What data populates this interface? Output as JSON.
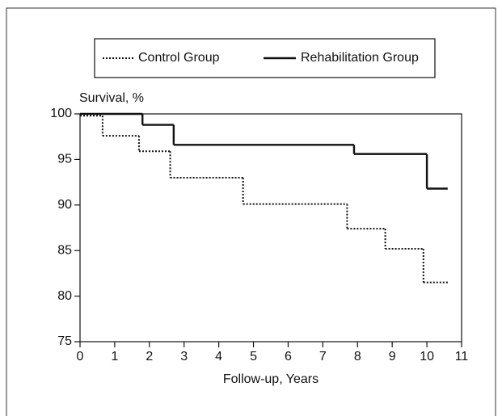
{
  "chart_data": {
    "type": "step",
    "y_label": "Survival, %",
    "x_label": "Follow-up, Years",
    "xlim": [
      0,
      11
    ],
    "xticks": [
      0,
      1,
      2,
      3,
      4,
      5,
      6,
      7,
      8,
      9,
      10,
      11
    ],
    "ylim": [
      75,
      100
    ],
    "yticks": [
      75,
      80,
      85,
      90,
      95,
      100
    ],
    "legend": "top",
    "series": [
      {
        "name": "Control Group",
        "color": "#111111",
        "dash": "dotted",
        "x": [
          0,
          0.65,
          1.7,
          2.6,
          4.7,
          7.7,
          8.8,
          9.9,
          10.6
        ],
        "values": [
          99.8,
          97.6,
          95.9,
          93.0,
          90.1,
          87.4,
          85.2,
          81.5,
          81.5
        ]
      },
      {
        "name": "Rehabilitation Group",
        "color": "#111111",
        "dash": "solid",
        "x": [
          0,
          1.8,
          2.7,
          7.9,
          10.0,
          10.6
        ],
        "values": [
          100,
          98.8,
          96.6,
          95.6,
          91.8,
          91.8
        ]
      }
    ]
  }
}
